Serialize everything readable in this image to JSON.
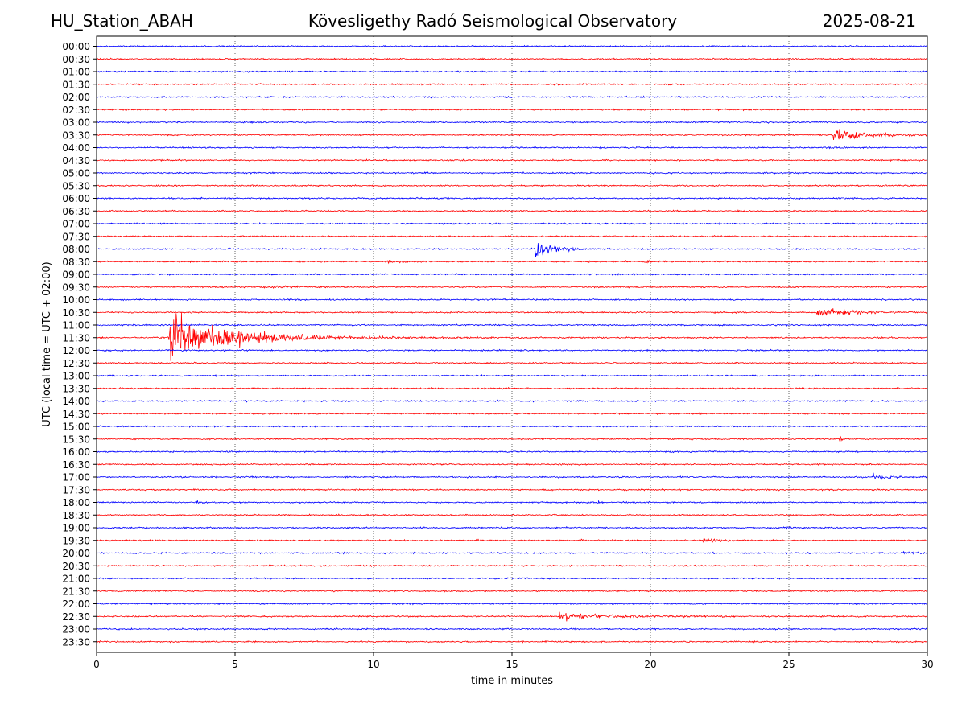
{
  "header": {
    "station": "HU_Station_ABAH",
    "title": "Kövesligethy Radó Seismological Observatory",
    "date": "2025-08-21"
  },
  "chart_data": {
    "type": "line",
    "title": "Kövesligethy Radó Seismological Observatory",
    "xlabel": "time in minutes",
    "ylabel": "UTC (local time = UTC + 02:00)",
    "xlim": [
      0,
      30
    ],
    "x_ticks": [
      0,
      5,
      10,
      15,
      20,
      25,
      30
    ],
    "grid": "vertical dotted at each x tick",
    "colors": [
      "#0000ff",
      "#ff0000"
    ],
    "rows": [
      "00:00",
      "00:30",
      "01:00",
      "01:30",
      "02:00",
      "02:30",
      "03:00",
      "03:30",
      "04:00",
      "04:30",
      "05:00",
      "05:30",
      "06:00",
      "06:30",
      "07:00",
      "07:30",
      "08:00",
      "08:30",
      "09:00",
      "09:30",
      "10:00",
      "10:30",
      "11:00",
      "11:30",
      "12:00",
      "12:30",
      "13:00",
      "13:30",
      "14:00",
      "14:30",
      "15:00",
      "15:30",
      "16:00",
      "16:30",
      "17:00",
      "17:30",
      "18:00",
      "18:30",
      "19:00",
      "19:30",
      "20:00",
      "20:30",
      "21:00",
      "21:30",
      "22:00",
      "22:30",
      "23:00",
      "23:30"
    ],
    "events": [
      {
        "row": "03:30",
        "start_min": 26.6,
        "amplitude": 14,
        "decay_min": 1.2
      },
      {
        "row": "08:00",
        "start_min": 15.85,
        "amplitude": 28,
        "decay_min": 0.55
      },
      {
        "row": "08:30",
        "start_min": 10.4,
        "amplitude": 3,
        "decay_min": 0.5
      },
      {
        "row": "08:30",
        "start_min": 19.8,
        "amplitude": 3,
        "decay_min": 0.3
      },
      {
        "row": "09:30",
        "start_min": 6.3,
        "amplitude": 3,
        "decay_min": 0.7
      },
      {
        "row": "10:30",
        "start_min": 26.0,
        "amplitude": 11,
        "decay_min": 1.0
      },
      {
        "row": "11:30",
        "start_min": 2.65,
        "amplitude": 50,
        "decay_min": 2.2
      },
      {
        "row": "15:30",
        "start_min": 26.8,
        "amplitude": 8,
        "decay_min": 0.1
      },
      {
        "row": "17:00",
        "start_min": 28.0,
        "amplitude": 7,
        "decay_min": 0.6
      },
      {
        "row": "18:00",
        "start_min": 3.6,
        "amplitude": 7,
        "decay_min": 0.08
      },
      {
        "row": "18:00",
        "start_min": 18.1,
        "amplitude": 8,
        "decay_min": 0.1
      },
      {
        "row": "19:00",
        "start_min": 24.95,
        "amplitude": 8,
        "decay_min": 0.1
      },
      {
        "row": "19:30",
        "start_min": 13.75,
        "amplitude": 6,
        "decay_min": 0.06
      },
      {
        "row": "19:30",
        "start_min": 17.5,
        "amplitude": 6,
        "decay_min": 0.06
      },
      {
        "row": "19:30",
        "start_min": 21.9,
        "amplitude": 6,
        "decay_min": 0.5
      },
      {
        "row": "20:00",
        "start_min": 29.0,
        "amplitude": 3,
        "decay_min": 0.6
      },
      {
        "row": "22:30",
        "start_min": 16.7,
        "amplitude": 9,
        "decay_min": 1.8
      }
    ]
  }
}
